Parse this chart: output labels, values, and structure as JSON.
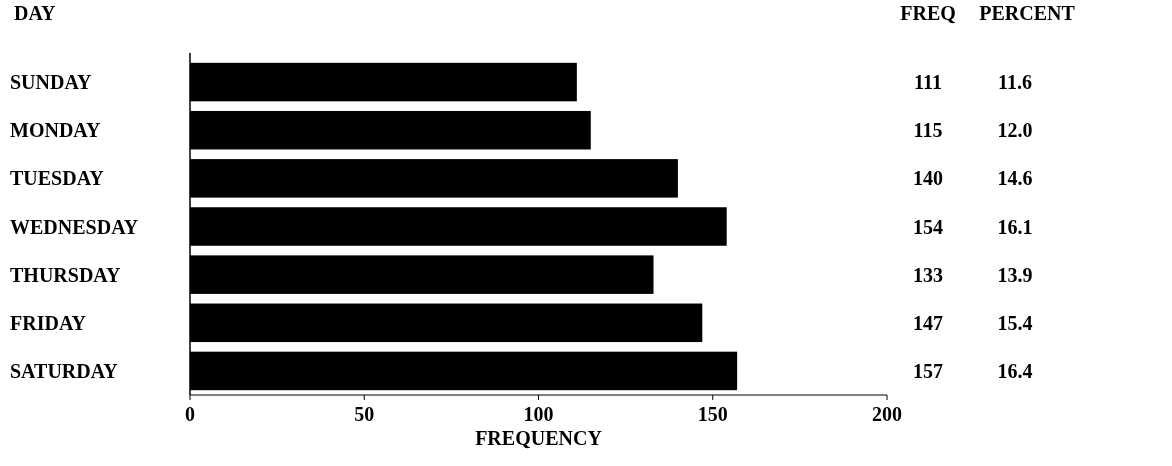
{
  "chart_data": {
    "type": "bar",
    "orientation": "horizontal",
    "ylabel": "DAY",
    "xlabel": "FREQUENCY",
    "categories": [
      "SUNDAY",
      "MONDAY",
      "TUESDAY",
      "WEDNESDAY",
      "THURSDAY",
      "FRIDAY",
      "SATURDAY"
    ],
    "values": [
      111,
      115,
      140,
      154,
      133,
      147,
      157
    ],
    "color": "#000000",
    "xlim": [
      0,
      200
    ],
    "xticks": [
      0,
      50,
      100,
      150,
      200
    ],
    "data_labels": true,
    "grid": false,
    "annotations": [
      "FREQ",
      "PERCENT",
      "11.6",
      "12.0",
      "14.6",
      "16.1",
      "13.9",
      "15.4",
      "16.4"
    ]
  }
}
